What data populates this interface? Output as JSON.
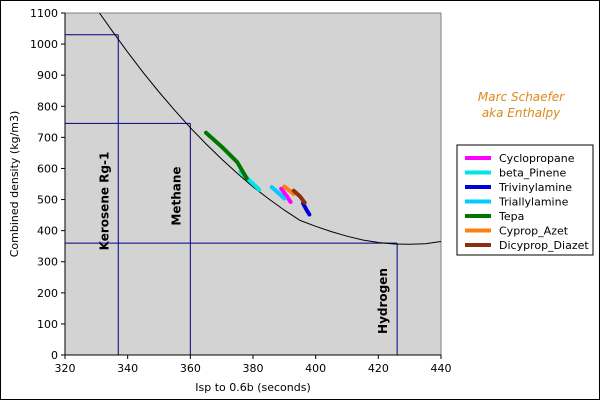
{
  "chart_data": {
    "type": "line",
    "xlabel": "Isp to 0.6b (seconds)",
    "ylabel": "Combined density (kg/m3)",
    "xlim": [
      320,
      440
    ],
    "ylim": [
      0,
      1100
    ],
    "x_ticks": [
      "320",
      "340",
      "360",
      "380",
      "400",
      "420",
      "440"
    ],
    "y_ticks": [
      "0",
      "100",
      "200",
      "300",
      "400",
      "500",
      "600",
      "700",
      "800",
      "900",
      "1000",
      "1100"
    ],
    "plot_background": "#d3d3d3",
    "grid": false,
    "legend_position": "right",
    "credit": [
      "Marc Schaefer",
      "aka Enthalpy"
    ],
    "credit_color": "#d98a1a",
    "reference_curve": {
      "color": "#000000",
      "x": [
        331,
        335,
        340,
        345,
        350,
        355,
        360,
        365,
        370,
        375,
        380,
        385,
        390,
        395,
        400,
        405,
        410,
        415,
        420,
        425,
        430,
        435,
        440
      ],
      "y": [
        1100,
        1043,
        974,
        908,
        846,
        787,
        731,
        679,
        630,
        584,
        541,
        502,
        466,
        433,
        414,
        397,
        382,
        370,
        362,
        357,
        356,
        358,
        365
      ]
    },
    "reference_lines": [
      {
        "label": "Kerosene Rg-1",
        "x": 337,
        "y": 1030
      },
      {
        "label": "Methane",
        "x": 360,
        "y": 745
      },
      {
        "label": "Hydrogen",
        "x": 426,
        "y": 360
      }
    ],
    "series": [
      {
        "name": "Cyclopropane",
        "color": "#ff00ff",
        "x": [
          389,
          390.5,
          392
        ],
        "y": [
          535,
          515,
          492
        ]
      },
      {
        "name": "beta_Pinene",
        "color": "#00e5e5",
        "x": [
          376,
          379,
          382
        ],
        "y": [
          590,
          560,
          532
        ]
      },
      {
        "name": "Trivinylamine",
        "color": "#0000dd",
        "x": [
          396,
          397,
          398
        ],
        "y": [
          488,
          468,
          452
        ]
      },
      {
        "name": "Triallylamine",
        "color": "#00ccff",
        "x": [
          386,
          388,
          390
        ],
        "y": [
          540,
          522,
          503
        ]
      },
      {
        "name": "Tepa",
        "color": "#007800",
        "x": [
          365,
          370,
          375,
          378
        ],
        "y": [
          715,
          670,
          620,
          568
        ]
      },
      {
        "name": "Cyprop_Azet",
        "color": "#ff7f10",
        "x": [
          390,
          391.5,
          393
        ],
        "y": [
          542,
          530,
          518
        ]
      },
      {
        "name": "Dicyprop_Diazet",
        "color": "#8b2f0e",
        "x": [
          393,
          395,
          396.5
        ],
        "y": [
          528,
          510,
          490
        ]
      }
    ]
  }
}
